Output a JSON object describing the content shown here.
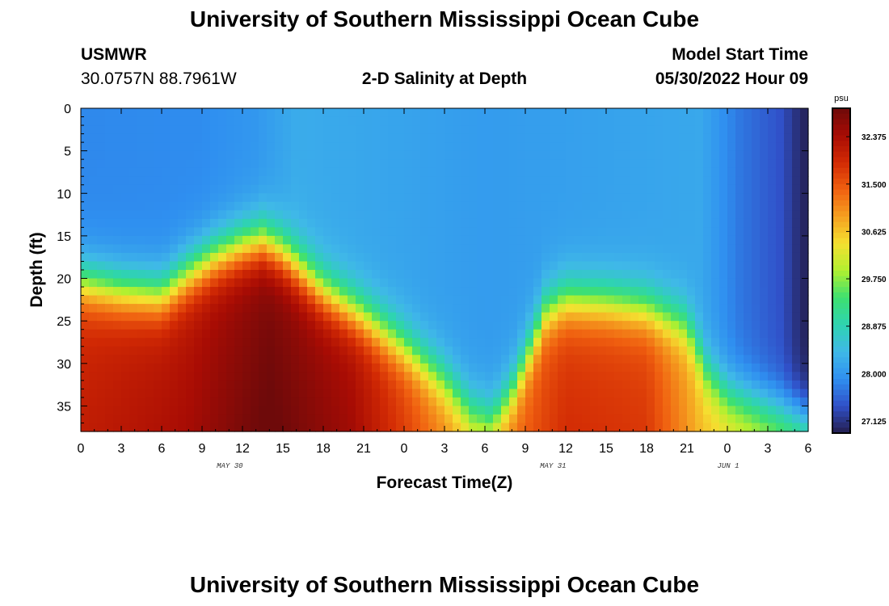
{
  "header": {
    "title": "University of Southern Mississippi Ocean Cube",
    "station": "USMWR",
    "coords": "30.0757N  88.7961W",
    "plot_title": "2-D Salinity at Depth",
    "model_start_label": "Model Start Time",
    "model_start_value": "05/30/2022 Hour 09"
  },
  "footer": {
    "title": "University of Southern Mississippi Ocean Cube"
  },
  "chart_data": {
    "type": "heatmap",
    "title": "2-D Salinity at Depth",
    "xlabel": "Forecast Time(Z)",
    "ylabel": "Depth (ft)",
    "x_tick_labels": [
      "0",
      "3",
      "6",
      "9",
      "12",
      "15",
      "18",
      "21",
      "0",
      "3",
      "6",
      "9",
      "12",
      "15",
      "18",
      "21",
      "0",
      "3",
      "6"
    ],
    "date_labels": [
      "MAY 30",
      "MAY 31",
      "JUN 1"
    ],
    "y_tick_labels": [
      "0",
      "5",
      "10",
      "15",
      "20",
      "25",
      "30",
      "35"
    ],
    "x_range_hours": [
      0,
      54
    ],
    "y_range_ft": [
      0,
      38
    ],
    "y_reversed": true,
    "colorbar": {
      "unit": "psu",
      "tick_labels": [
        "32.375",
        "31.500",
        "30.625",
        "29.750",
        "28.875",
        "28.000",
        "27.125"
      ],
      "range": [
        26.9,
        32.9
      ],
      "colors": [
        "#241e4e",
        "#3050c8",
        "#2f8ff0",
        "#3fb8e8",
        "#2ed4b0",
        "#3ee070",
        "#b0f030",
        "#f5e030",
        "#f5a020",
        "#f06010",
        "#d22a04",
        "#a80c04",
        "#6e0a0a"
      ]
    },
    "boundary_depth_ft": [
      {
        "x": 0,
        "d": 20.5
      },
      {
        "x": 3,
        "d": 21.5
      },
      {
        "x": 6,
        "d": 22
      },
      {
        "x": 8,
        "d": 19.5
      },
      {
        "x": 10,
        "d": 17.5
      },
      {
        "x": 12,
        "d": 16.2
      },
      {
        "x": 13.5,
        "d": 15.6
      },
      {
        "x": 15,
        "d": 17
      },
      {
        "x": 18,
        "d": 21.5
      },
      {
        "x": 21,
        "d": 24.5
      },
      {
        "x": 24,
        "d": 28
      },
      {
        "x": 27,
        "d": 32
      },
      {
        "x": 29,
        "d": 35.5
      },
      {
        "x": 30.5,
        "d": 36.8
      },
      {
        "x": 32,
        "d": 33.5
      },
      {
        "x": 34.5,
        "d": 24
      },
      {
        "x": 36,
        "d": 22.5
      },
      {
        "x": 39,
        "d": 22.8
      },
      {
        "x": 42,
        "d": 23.5
      },
      {
        "x": 45,
        "d": 25.5
      },
      {
        "x": 46.5,
        "d": 31
      },
      {
        "x": 48,
        "d": 33.5
      },
      {
        "x": 51,
        "d": 35
      },
      {
        "x": 54,
        "d": 36.5
      }
    ],
    "surface_salinity_psu": [
      {
        "x": 0,
        "v": 27.85
      },
      {
        "x": 9,
        "v": 27.88
      },
      {
        "x": 13,
        "v": 28.0
      },
      {
        "x": 16,
        "v": 28.25
      },
      {
        "x": 24,
        "v": 28.15
      },
      {
        "x": 30,
        "v": 28.05
      },
      {
        "x": 36,
        "v": 28.1
      },
      {
        "x": 46,
        "v": 28.2
      },
      {
        "x": 49,
        "v": 27.7
      },
      {
        "x": 52,
        "v": 27.4
      },
      {
        "x": 53.5,
        "v": 27.0
      },
      {
        "x": 54,
        "v": 26.95
      }
    ],
    "deep_salinity_psu": [
      {
        "x": 0,
        "v": 31.9
      },
      {
        "x": 8,
        "v": 32.2
      },
      {
        "x": 14,
        "v": 32.7
      },
      {
        "x": 20,
        "v": 32.3
      },
      {
        "x": 24,
        "v": 31.6
      },
      {
        "x": 29,
        "v": 30.6
      },
      {
        "x": 32,
        "v": 31.2
      },
      {
        "x": 36,
        "v": 31.7
      },
      {
        "x": 42,
        "v": 31.6
      },
      {
        "x": 46,
        "v": 30.6
      },
      {
        "x": 54,
        "v": 29.7
      }
    ],
    "grid": false
  }
}
